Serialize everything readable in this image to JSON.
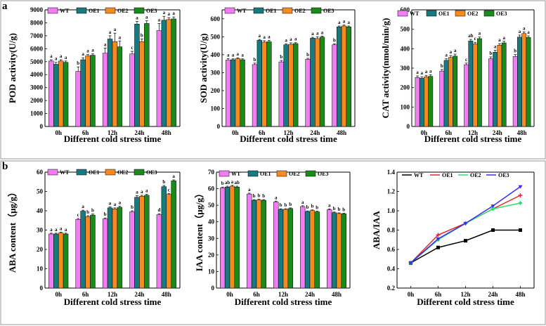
{
  "panels": {
    "a": "a",
    "b": "b"
  },
  "colors": {
    "WT": "#f07ef2",
    "OE1": "#18797f",
    "OE2": "#f58a1f",
    "OE3": "#1a8a1a",
    "line_WT": "#000000",
    "line_OE1": "#e8232a",
    "line_OE2": "#2de06b",
    "line_OE3": "#3a2cf0"
  },
  "chart_data": [
    {
      "id": "pod",
      "type": "bar",
      "ylabel": "POD activity(U/g)",
      "xlabel": "Different cold stress time",
      "categories": [
        "0h",
        "6h",
        "12h",
        "24h",
        "48h"
      ],
      "ylim": [
        0,
        9000
      ],
      "yticks": [
        0,
        1000,
        2000,
        3000,
        4000,
        5000,
        6000,
        7000,
        8000,
        9000
      ],
      "series": [
        {
          "name": "WT",
          "values": [
            5050,
            4250,
            5650,
            5600,
            7400
          ],
          "errors": [
            100,
            350,
            400,
            200,
            550
          ],
          "letters": [
            "a",
            "b",
            "a",
            "c",
            "a"
          ]
        },
        {
          "name": "OE1",
          "values": [
            4800,
            5150,
            6750,
            7900,
            8200
          ],
          "errors": [
            150,
            150,
            250,
            200,
            300
          ],
          "letters": [
            "a",
            "a",
            "a",
            "a",
            "a"
          ]
        },
        {
          "name": "OE2",
          "values": [
            5050,
            5450,
            6550,
            6550,
            8250
          ],
          "errors": [
            100,
            100,
            650,
            200,
            150
          ],
          "letters": [
            "a",
            "a",
            "a",
            "b",
            "a"
          ]
        },
        {
          "name": "OE3",
          "values": [
            4950,
            5500,
            6150,
            7950,
            8300
          ],
          "errors": [
            100,
            100,
            450,
            200,
            150
          ],
          "letters": [
            "a",
            "a",
            "a",
            "a",
            "a"
          ]
        }
      ]
    },
    {
      "id": "sod",
      "type": "bar",
      "ylabel": "SOD activity(U/g)",
      "xlabel": "Different cold stress time",
      "categories": [
        "0h",
        "6h",
        "12h",
        "24h",
        "48h"
      ],
      "ylim": [
        0,
        650
      ],
      "yticks": [
        0,
        100,
        200,
        300,
        400,
        500,
        600
      ],
      "series": [
        {
          "name": "WT",
          "values": [
            370,
            345,
            360,
            375,
            455
          ],
          "errors": [
            8,
            8,
            8,
            5,
            5
          ],
          "letters": [
            "a",
            "b",
            "b",
            "b",
            "b"
          ]
        },
        {
          "name": "OE1",
          "values": [
            372,
            480,
            455,
            492,
            555
          ],
          "errors": [
            5,
            5,
            5,
            5,
            5
          ],
          "letters": [
            "a",
            "a",
            "a",
            "a",
            "a"
          ]
        },
        {
          "name": "OE2",
          "values": [
            378,
            470,
            458,
            490,
            560
          ],
          "errors": [
            5,
            8,
            8,
            10,
            5
          ],
          "letters": [
            "a",
            "a",
            "a",
            "a",
            "a"
          ]
        },
        {
          "name": "OE3",
          "values": [
            372,
            472,
            462,
            498,
            555
          ],
          "errors": [
            5,
            8,
            5,
            5,
            5
          ],
          "letters": [
            "a",
            "a",
            "a",
            "a",
            "a"
          ]
        }
      ]
    },
    {
      "id": "cat",
      "type": "bar",
      "ylabel": "CAT activity(nmol/min/g)",
      "xlabel": "Different cold stress time",
      "categories": [
        "0h",
        "6h",
        "12h",
        "24h",
        "48h"
      ],
      "ylim": [
        0,
        600
      ],
      "yticks": [
        0,
        100,
        200,
        300,
        400,
        500,
        600
      ],
      "series": [
        {
          "name": "WT",
          "values": [
            252,
            285,
            318,
            348,
            360
          ],
          "errors": [
            8,
            8,
            8,
            10,
            10
          ],
          "letters": [
            "a",
            "b",
            "c",
            "b",
            "b"
          ]
        },
        {
          "name": "OE1",
          "values": [
            248,
            340,
            440,
            382,
            460
          ],
          "errors": [
            8,
            8,
            8,
            10,
            10
          ],
          "letters": [
            "a",
            "a",
            "ab",
            "a",
            "a"
          ]
        },
        {
          "name": "OE2",
          "values": [
            255,
            355,
            425,
            418,
            478
          ],
          "errors": [
            8,
            10,
            8,
            8,
            8
          ],
          "letters": [
            "a",
            "a",
            "c",
            "a",
            "a"
          ]
        },
        {
          "name": "OE3",
          "values": [
            258,
            362,
            452,
            430,
            458
          ],
          "errors": [
            8,
            10,
            8,
            8,
            8
          ],
          "letters": [
            "a",
            "a",
            "a",
            "a",
            "a"
          ]
        }
      ]
    },
    {
      "id": "aba",
      "type": "bar",
      "ylabel": "ABA content（μg/g）",
      "xlabel": "Different cold stress time",
      "categories": [
        "0h",
        "6h",
        "12h",
        "24h",
        "48h"
      ],
      "ylim": [
        0,
        60
      ],
      "yticks": [
        0,
        10,
        20,
        30,
        40,
        50,
        60
      ],
      "series": [
        {
          "name": "WT",
          "values": [
            28,
            35.5,
            35.8,
            39.5,
            38
          ],
          "errors": [
            0.4,
            0.5,
            0.5,
            0.5,
            0.5
          ],
          "letters": [
            "a",
            "c",
            "b",
            "b",
            "d"
          ]
        },
        {
          "name": "OE1",
          "values": [
            28,
            39.8,
            41.5,
            47,
            52.5
          ],
          "errors": [
            0.4,
            0.5,
            0.5,
            0.8,
            0.6
          ],
          "letters": [
            "a",
            "a",
            "a",
            "a",
            "b"
          ]
        },
        {
          "name": "OE2",
          "values": [
            28.5,
            37,
            41,
            47.5,
            48.5
          ],
          "errors": [
            0.4,
            0.5,
            0.5,
            0.5,
            0.5
          ],
          "letters": [
            "a",
            "b",
            "a",
            "a",
            "c"
          ]
        },
        {
          "name": "OE3",
          "values": [
            28,
            37.8,
            41.8,
            48,
            55.5
          ],
          "errors": [
            0.4,
            0.5,
            0.5,
            0.5,
            0.5
          ],
          "letters": [
            "a",
            "b",
            "a",
            "a",
            "a"
          ]
        }
      ]
    },
    {
      "id": "iaa",
      "type": "bar",
      "ylabel": "IAA content（μg/g）",
      "xlabel": "Different cold stress time",
      "categories": [
        "0h",
        "6h",
        "12h",
        "24h",
        "48h"
      ],
      "ylim": [
        0,
        70
      ],
      "yticks": [
        0,
        10,
        20,
        30,
        40,
        50,
        60,
        70
      ],
      "series": [
        {
          "name": "WT",
          "values": [
            60.5,
            56.8,
            52,
            49.2,
            47.3
          ],
          "errors": [
            0.5,
            0.5,
            0.5,
            0.5,
            0.5
          ],
          "letters": [
            "b",
            "a",
            "a",
            "a",
            "a"
          ]
        },
        {
          "name": "OE1",
          "values": [
            61,
            53,
            47.5,
            46.2,
            45.5
          ],
          "errors": [
            0.5,
            0.4,
            0.4,
            0.4,
            0.4
          ],
          "letters": [
            "ab",
            "b",
            "b",
            "b",
            "b"
          ]
        },
        {
          "name": "OE2",
          "values": [
            61.5,
            53.2,
            47.5,
            46.8,
            45
          ],
          "errors": [
            0.5,
            0.4,
            0.4,
            0.4,
            0.4
          ],
          "letters": [
            "a",
            "b",
            "b",
            "b",
            "b"
          ]
        },
        {
          "name": "OE3",
          "values": [
            61,
            53,
            48,
            46,
            44.8
          ],
          "errors": [
            0.5,
            0.4,
            0.4,
            0.4,
            0.4
          ],
          "letters": [
            "ab",
            "b",
            "b",
            "b",
            "b"
          ]
        }
      ]
    },
    {
      "id": "ratio",
      "type": "line",
      "ylabel": "ABA/IAA",
      "xlabel": "Different cold stress time",
      "categories": [
        "0h",
        "6h",
        "12h",
        "24h",
        "48h"
      ],
      "ylim": [
        0.2,
        1.4
      ],
      "yticks": [
        0.2,
        0.4,
        0.6,
        0.8,
        1.0,
        1.2,
        1.4
      ],
      "ytick_labels": [
        "0.2",
        "0.4",
        "0.6",
        "0.8",
        "1.0",
        "1.2",
        "1.4"
      ],
      "series": [
        {
          "name": "WT",
          "values": [
            0.46,
            0.62,
            0.69,
            0.8,
            0.8
          ]
        },
        {
          "name": "OE1",
          "values": [
            0.46,
            0.75,
            0.87,
            1.02,
            1.16
          ]
        },
        {
          "name": "OE2",
          "values": [
            0.46,
            0.7,
            0.87,
            1.02,
            1.08
          ]
        },
        {
          "name": "OE3",
          "values": [
            0.46,
            0.71,
            0.87,
            1.05,
            1.25
          ]
        }
      ]
    }
  ]
}
